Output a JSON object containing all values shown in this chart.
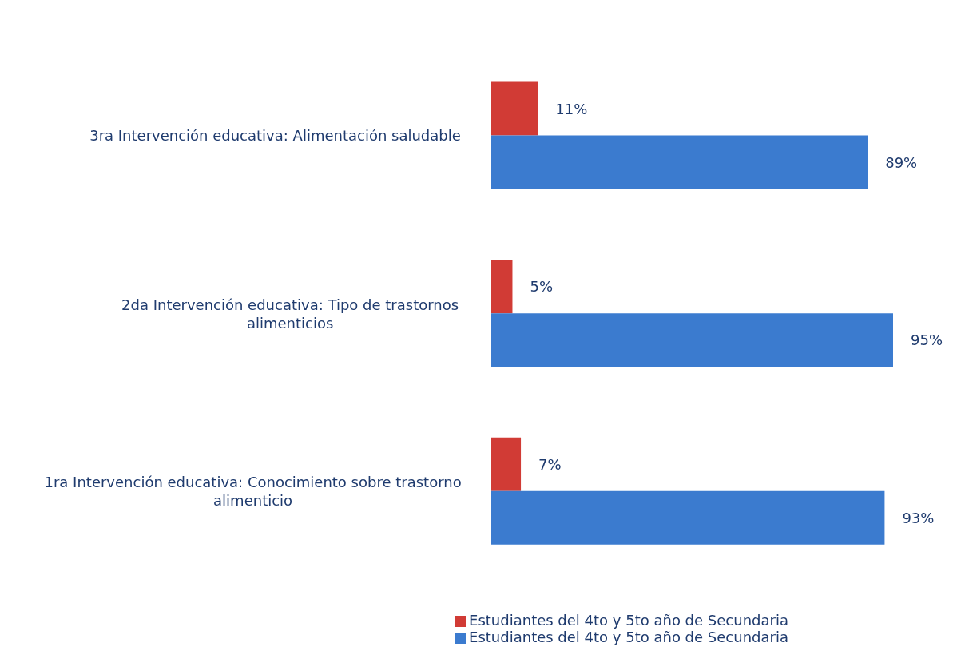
{
  "chart_data": {
    "type": "bar",
    "orientation": "horizontal",
    "categories": [
      "3ra Intervención educativa: Alimentación saludable",
      "2da Intervención educativa: Tipo de trastornos alimenticios",
      "1ra Intervención educativa: Conocimiento sobre trastorno alimenticio"
    ],
    "series": [
      {
        "name": "Estudiantes del 4to y 5to año de Secundaria",
        "color": "#d13b35",
        "values": [
          11,
          5,
          7
        ],
        "value_labels": [
          "11%",
          "5%",
          "7%"
        ]
      },
      {
        "name": "Estudiantes del 4to y 5to año de Secundaria",
        "color": "#3b7bcf",
        "values": [
          89,
          95,
          93
        ],
        "value_labels": [
          "89%",
          "95%",
          "93%"
        ]
      }
    ],
    "legend": "bottom",
    "tick_labels": "y"
  }
}
